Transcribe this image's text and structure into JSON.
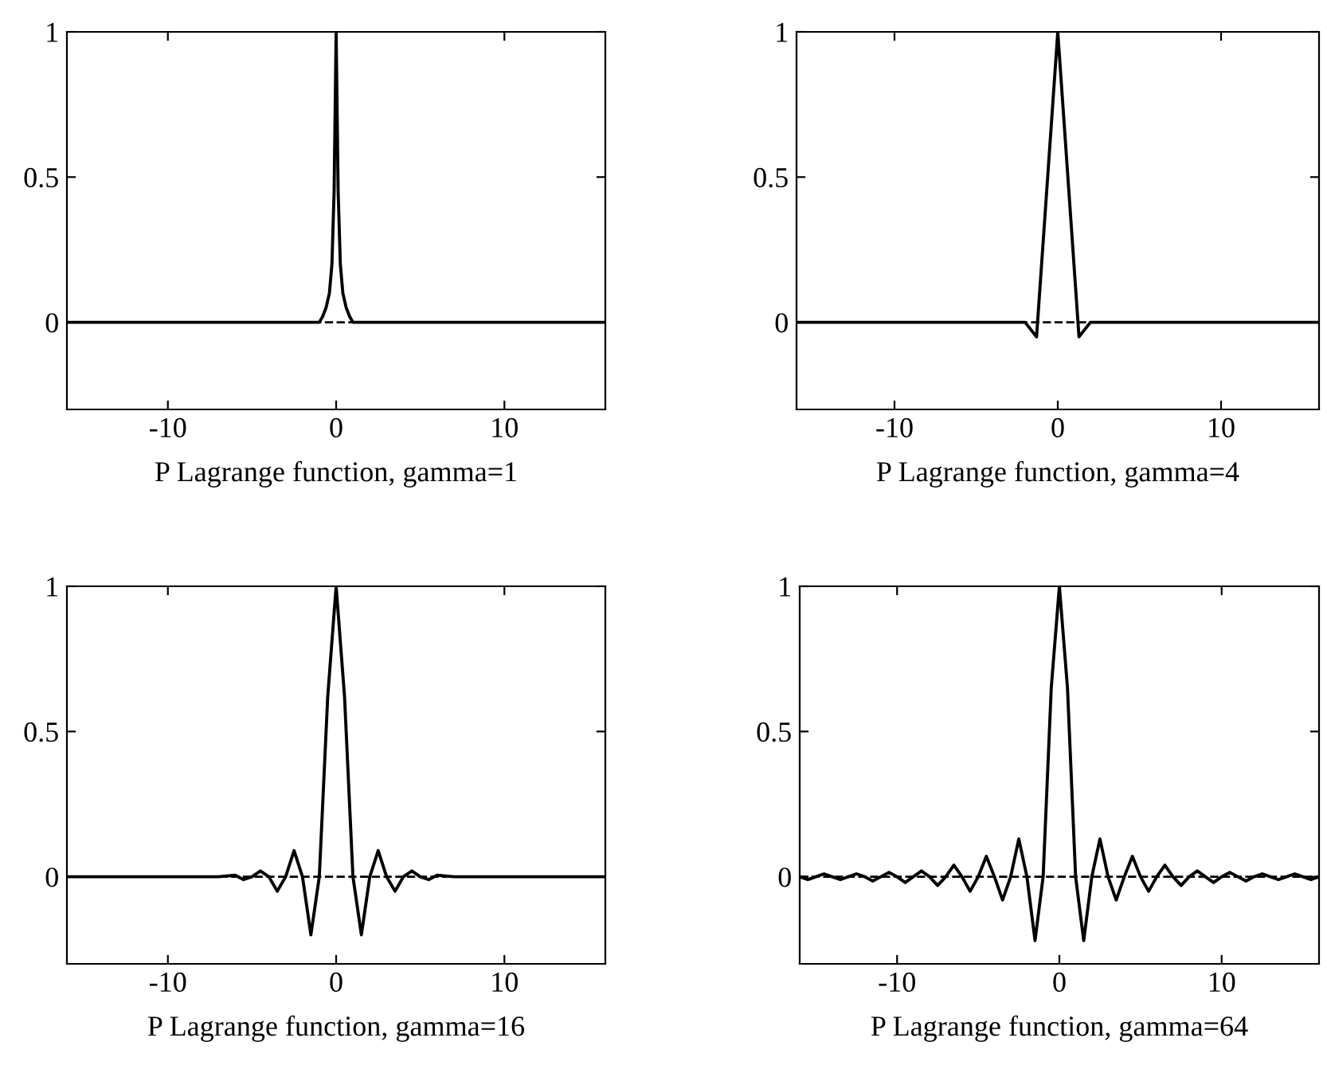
{
  "chart_data": [
    {
      "type": "line",
      "xlabel": "P Lagrange function, gamma=1",
      "xlim": [
        -16,
        16
      ],
      "ylim": [
        -0.3,
        1
      ],
      "xticks": [
        -10,
        0,
        10
      ],
      "yticks": [
        0,
        0.5,
        1
      ],
      "grid": false,
      "line_style": "solid",
      "marker": "none",
      "ref_lines": [
        {
          "axis": "y",
          "value": 0,
          "line_style": "dashed",
          "color": "#000000"
        }
      ],
      "series": [
        {
          "color": "#000000",
          "x": [
            -16,
            -1,
            -0.8,
            -0.6,
            -0.4,
            -0.25,
            -0.12,
            0,
            0.12,
            0.25,
            0.4,
            0.6,
            0.8,
            1,
            16
          ],
          "values": [
            0,
            0,
            0.02,
            0.05,
            0.1,
            0.2,
            0.45,
            1,
            0.45,
            0.2,
            0.1,
            0.05,
            0.02,
            0,
            0
          ]
        }
      ]
    },
    {
      "type": "line",
      "xlabel": "P Lagrange function, gamma=4",
      "xlim": [
        -16,
        16
      ],
      "ylim": [
        -0.3,
        1
      ],
      "xticks": [
        -10,
        0,
        10
      ],
      "yticks": [
        0,
        0.5,
        1
      ],
      "grid": false,
      "line_style": "solid",
      "marker": "none",
      "ref_lines": [
        {
          "axis": "y",
          "value": 0,
          "line_style": "dashed",
          "color": "#000000"
        }
      ],
      "series": [
        {
          "color": "#000000",
          "x": [
            -16,
            -2,
            -1.3,
            0,
            1.3,
            2,
            16
          ],
          "values": [
            0,
            0,
            -0.05,
            1,
            -0.05,
            0,
            0
          ]
        }
      ]
    },
    {
      "type": "line",
      "xlabel": "P Lagrange function, gamma=16",
      "xlim": [
        -16,
        16
      ],
      "ylim": [
        -0.3,
        1
      ],
      "xticks": [
        -10,
        0,
        10
      ],
      "yticks": [
        0,
        0.5,
        1
      ],
      "grid": false,
      "line_style": "solid",
      "marker": "none",
      "ref_lines": [
        {
          "axis": "y",
          "value": 0,
          "line_style": "dashed",
          "color": "#000000"
        }
      ],
      "series": [
        {
          "color": "#000000",
          "x": [
            -16,
            -7,
            -6,
            -5.5,
            -5,
            -4.5,
            -4,
            -3.5,
            -3,
            -2.5,
            -2,
            -1.5,
            -1,
            -0.5,
            0,
            0.5,
            1,
            1.5,
            2,
            2.5,
            3,
            3.5,
            4,
            4.5,
            5,
            5.5,
            6,
            7,
            16
          ],
          "values": [
            0,
            0,
            0.005,
            -0.01,
            0,
            0.02,
            0,
            -0.05,
            0,
            0.09,
            0,
            -0.2,
            0,
            0.62,
            1,
            0.62,
            0,
            -0.2,
            0,
            0.09,
            0,
            -0.05,
            0,
            0.02,
            0,
            -0.01,
            0.005,
            0,
            0
          ]
        }
      ]
    },
    {
      "type": "line",
      "xlabel": "P Lagrange function, gamma=64",
      "xlim": [
        -16,
        16
      ],
      "ylim": [
        -0.3,
        1
      ],
      "xticks": [
        -10,
        0,
        10
      ],
      "yticks": [
        0,
        0.5,
        1
      ],
      "grid": false,
      "line_style": "solid",
      "marker": "none",
      "ref_lines": [
        {
          "axis": "y",
          "value": 0,
          "line_style": "dashed",
          "color": "#000000"
        }
      ],
      "series": [
        {
          "color": "#000000",
          "x": [
            -16,
            -15.5,
            -15,
            -14.5,
            -14,
            -13.5,
            -13,
            -12.5,
            -12,
            -11.5,
            -11,
            -10.5,
            -10,
            -9.5,
            -9,
            -8.5,
            -8,
            -7.5,
            -7,
            -6.5,
            -6,
            -5.5,
            -5,
            -4.5,
            -4,
            -3.5,
            -3,
            -2.5,
            -2,
            -1.5,
            -1,
            -0.5,
            0,
            0.5,
            1,
            1.5,
            2,
            2.5,
            3,
            3.5,
            4,
            4.5,
            5,
            5.5,
            6,
            6.5,
            7,
            7.5,
            8,
            8.5,
            9,
            9.5,
            10,
            10.5,
            11,
            11.5,
            12,
            12.5,
            13,
            13.5,
            14,
            14.5,
            15,
            15.5,
            16
          ],
          "values": [
            0,
            -0.01,
            0,
            0.01,
            0,
            -0.01,
            0,
            0.01,
            0,
            -0.015,
            0,
            0.015,
            0,
            -0.02,
            0,
            0.02,
            0,
            -0.03,
            0,
            0.04,
            0,
            -0.05,
            0,
            0.07,
            0,
            -0.08,
            0,
            0.13,
            0,
            -0.22,
            0,
            0.65,
            1,
            0.65,
            0,
            -0.22,
            0,
            0.13,
            0,
            -0.08,
            0,
            0.07,
            0,
            -0.05,
            0,
            0.04,
            0,
            -0.03,
            0,
            0.02,
            0,
            -0.02,
            0,
            0.015,
            0,
            -0.015,
            0,
            0.01,
            0,
            -0.01,
            0,
            0.01,
            0,
            -0.01,
            0
          ]
        }
      ]
    }
  ]
}
